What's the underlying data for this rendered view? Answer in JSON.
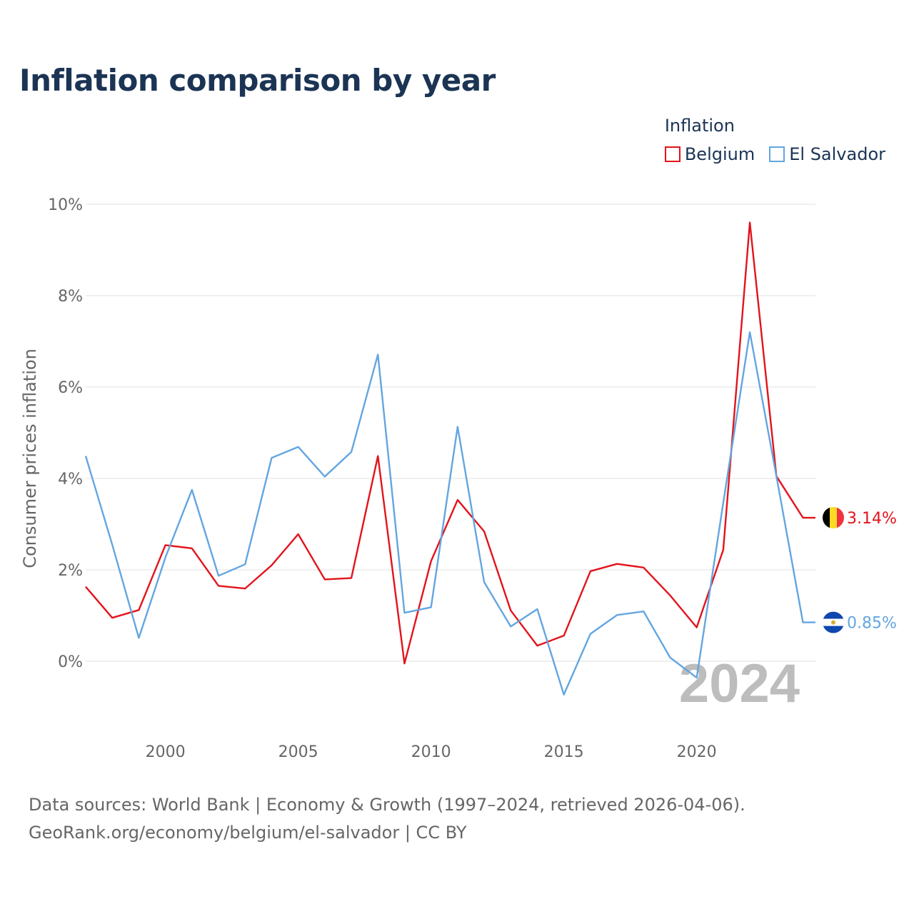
{
  "title": "Inflation comparison by year",
  "legend": {
    "title": "Inflation",
    "items": [
      {
        "name": "Belgium",
        "color": "#e3131b"
      },
      {
        "name": "El Salvador",
        "color": "#63a6e0"
      }
    ]
  },
  "chart_data": {
    "type": "line",
    "title": "Inflation comparison by year",
    "ylabel": "Consumer prices inflation",
    "xlabel": "",
    "xlim": [
      1997,
      2024
    ],
    "ylim": [
      -1.0,
      10.0
    ],
    "y_ticks": [
      0,
      2,
      4,
      6,
      8,
      10
    ],
    "y_tick_labels": [
      "0%",
      "2%",
      "4%",
      "6%",
      "8%",
      "10%"
    ],
    "x_ticks": [
      2000,
      2005,
      2010,
      2015,
      2020
    ],
    "x_tick_labels": [
      "2000",
      "2005",
      "2010",
      "2015",
      "2020"
    ],
    "x": [
      1997,
      1998,
      1999,
      2000,
      2001,
      2002,
      2003,
      2004,
      2005,
      2006,
      2007,
      2008,
      2009,
      2010,
      2011,
      2012,
      2013,
      2014,
      2015,
      2016,
      2017,
      2018,
      2019,
      2020,
      2021,
      2022,
      2023,
      2024
    ],
    "series": [
      {
        "name": "Belgium",
        "color": "#e3131b",
        "values": [
          1.63,
          0.95,
          1.12,
          2.54,
          2.47,
          1.65,
          1.59,
          2.1,
          2.78,
          1.79,
          1.82,
          4.49,
          -0.05,
          2.19,
          3.53,
          2.84,
          1.11,
          0.34,
          0.56,
          1.97,
          2.13,
          2.05,
          1.44,
          0.74,
          2.44,
          9.6,
          4.05,
          3.14
        ],
        "end_label": "3.14%"
      },
      {
        "name": "El Salvador",
        "color": "#63a6e0",
        "values": [
          4.49,
          2.55,
          0.51,
          2.27,
          3.75,
          1.87,
          2.12,
          4.45,
          4.69,
          4.04,
          4.58,
          6.71,
          1.06,
          1.18,
          5.13,
          1.73,
          0.76,
          1.14,
          -0.73,
          0.6,
          1.01,
          1.09,
          0.08,
          -0.36,
          3.47,
          7.2,
          4.05,
          0.85
        ],
        "end_label": "0.85%"
      }
    ],
    "year_watermark": "2024",
    "legend_position": "top-right",
    "grid": true
  },
  "footer": {
    "line1": "Data sources: World Bank | Economy & Growth (1997–2024, retrieved 2026-04-06).",
    "line2": "GeoRank.org/economy/belgium/el-salvador | CC BY"
  }
}
